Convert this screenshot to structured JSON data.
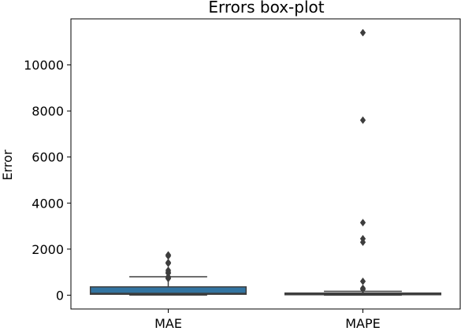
{
  "chart_data": {
    "type": "box",
    "title": "Errors box-plot",
    "xlabel": "",
    "ylabel": "Error",
    "categories": [
      "MAE",
      "MAPE"
    ],
    "ylim": [
      -600,
      12000
    ],
    "yticks": [
      0,
      2000,
      4000,
      6000,
      8000,
      10000
    ],
    "ytick_labels": [
      "0",
      "2000",
      "4000",
      "6000",
      "8000",
      "10000"
    ],
    "grid": false,
    "boxes": [
      {
        "name": "MAE",
        "color": "#3274a1",
        "whisker_low": 5,
        "q1": 40,
        "median": 80,
        "q3": 360,
        "whisker_high": 800,
        "outliers": [
          1750,
          1700,
          1420,
          1380,
          1080,
          1000,
          950,
          800,
          760,
          720
        ]
      },
      {
        "name": "MAPE",
        "color": "#e1812c",
        "whisker_low": 0,
        "q1": 20,
        "median": 45,
        "q3": 90,
        "whisker_high": 170,
        "outliers": [
          11400,
          7600,
          3150,
          2450,
          2300,
          600,
          300,
          250
        ]
      }
    ]
  }
}
